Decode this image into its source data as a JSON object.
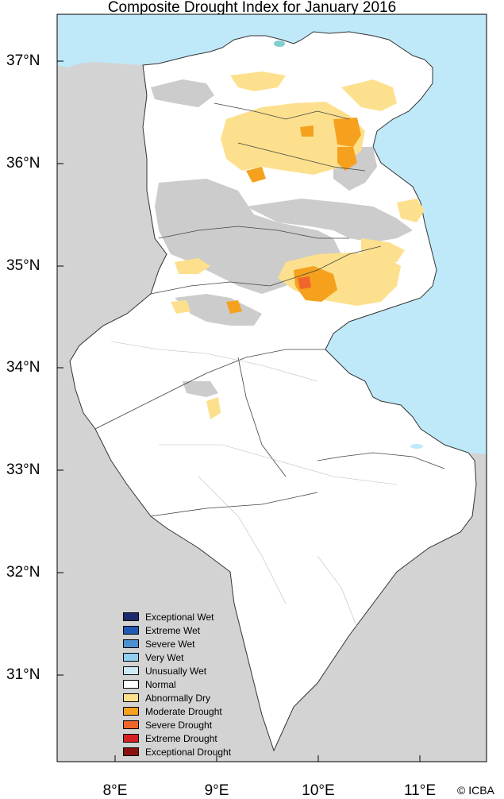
{
  "title": "Composite Drought Index for January 2016",
  "lat_labels": [
    "37°N",
    "36°N",
    "35°N",
    "34°N",
    "33°N",
    "32°N",
    "31°N"
  ],
  "lon_labels": [
    "8°E",
    "9°E",
    "10°E",
    "11°E"
  ],
  "colors": {
    "sea": "#bfe9f9",
    "land_outside": "#d3d3d3",
    "no_data_gray": "#cccccc",
    "abnormally_dry": "#fde08d",
    "moderate_drought": "#f5a11e"
  },
  "legend": [
    {
      "label": "Exceptional Wet",
      "color": "#1a2a6c"
    },
    {
      "label": "Extreme Wet",
      "color": "#2158b4"
    },
    {
      "label": "Severe Wet",
      "color": "#4c90d0"
    },
    {
      "label": "Very Wet",
      "color": "#90cff0"
    },
    {
      "label": "Unusually Wet",
      "color": "#cfeaf7"
    },
    {
      "label": "Normal",
      "color": "#ffffff"
    },
    {
      "label": "Abnormally Dry",
      "color": "#fde08d"
    },
    {
      "label": "Moderate Drought",
      "color": "#f5a11e"
    },
    {
      "label": "Severe Drought",
      "color": "#f0662a"
    },
    {
      "label": "Extreme Drought",
      "color": "#d62020"
    },
    {
      "label": "Exceptional Drought",
      "color": "#8b1010"
    }
  ],
  "credit": "© ICBA"
}
